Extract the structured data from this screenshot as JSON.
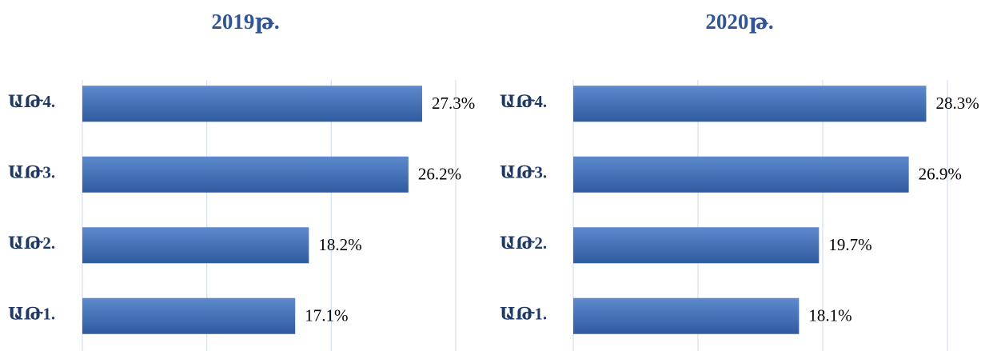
{
  "chart_data": [
    {
      "type": "barh",
      "title": "2019թ.",
      "categories": [
        "ԱԹ4.",
        "ԱԹ3.",
        "ԱԹ2.",
        "ԱԹ1."
      ],
      "values": [
        27.3,
        26.2,
        18.2,
        17.1
      ],
      "value_labels": [
        "27.3%",
        "26.2%",
        "18.2%",
        "17.1%"
      ],
      "color": "#3a6fc2",
      "xlim": [
        0,
        30
      ],
      "xticks": [
        0,
        10,
        20,
        30
      ],
      "grid": true
    },
    {
      "type": "barh",
      "title": "2020թ.",
      "categories": [
        "ԱԹ4.",
        "ԱԹ3.",
        "ԱԹ2.",
        "ԱԹ1."
      ],
      "values": [
        28.3,
        26.9,
        19.7,
        18.1
      ],
      "value_labels": [
        "28.3%",
        "26.9%",
        "19.7%",
        "18.1%"
      ],
      "color": "#3a6fc2",
      "xlim": [
        0,
        30
      ],
      "xticks": [
        0,
        10,
        20,
        30
      ],
      "grid": true
    }
  ]
}
